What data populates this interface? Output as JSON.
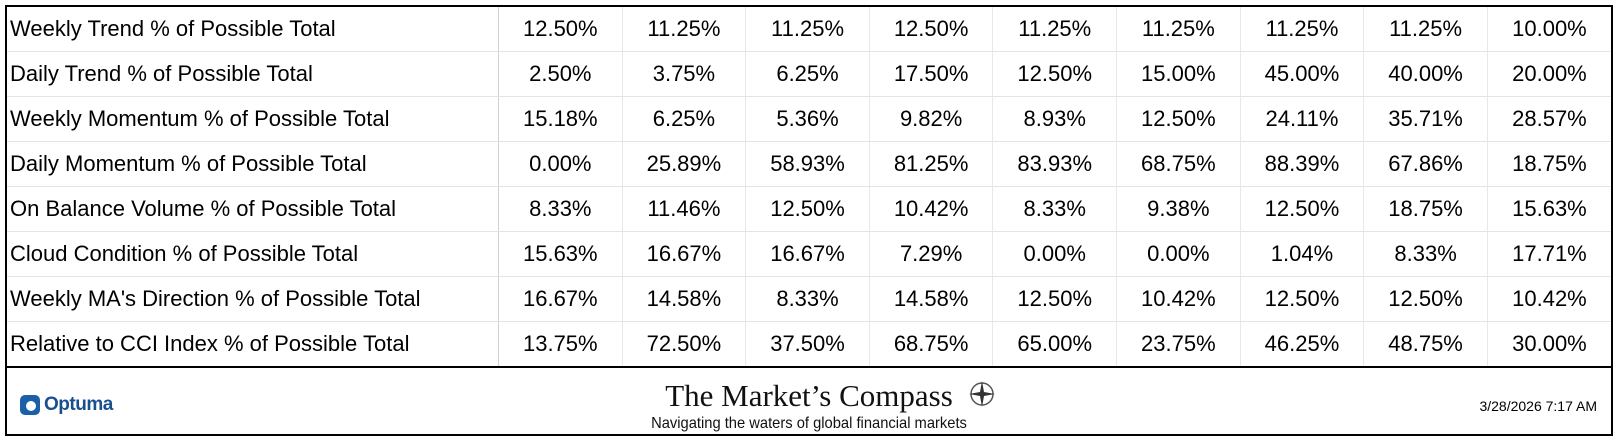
{
  "table": {
    "rows": [
      {
        "label": "Weekly Trend % of Possible Total",
        "values": [
          "12.50%",
          "11.25%",
          "11.25%",
          "12.50%",
          "11.25%",
          "11.25%",
          "11.25%",
          "11.25%",
          "10.00%"
        ]
      },
      {
        "label": "Daily Trend % of Possible Total",
        "values": [
          "2.50%",
          "3.75%",
          "6.25%",
          "17.50%",
          "12.50%",
          "15.00%",
          "45.00%",
          "40.00%",
          "20.00%"
        ]
      },
      {
        "label": "Weekly Momentum % of Possible Total",
        "values": [
          "15.18%",
          "6.25%",
          "5.36%",
          "9.82%",
          "8.93%",
          "12.50%",
          "24.11%",
          "35.71%",
          "28.57%"
        ]
      },
      {
        "label": "Daily Momentum % of Possible Total",
        "values": [
          "0.00%",
          "25.89%",
          "58.93%",
          "81.25%",
          "83.93%",
          "68.75%",
          "88.39%",
          "67.86%",
          "18.75%"
        ]
      },
      {
        "label": "On Balance Volume % of Possible Total",
        "values": [
          "8.33%",
          "11.46%",
          "12.50%",
          "10.42%",
          "8.33%",
          "9.38%",
          "12.50%",
          "18.75%",
          "15.63%"
        ]
      },
      {
        "label": "Cloud Condition % of Possible Total",
        "values": [
          "15.63%",
          "16.67%",
          "16.67%",
          "7.29%",
          "0.00%",
          "0.00%",
          "1.04%",
          "8.33%",
          "17.71%"
        ]
      },
      {
        "label": "Weekly MA's Direction % of Possible Total",
        "values": [
          "16.67%",
          "14.58%",
          "8.33%",
          "14.58%",
          "12.50%",
          "10.42%",
          "12.50%",
          "12.50%",
          "10.42%"
        ]
      },
      {
        "label": "Relative to CCI Index % of Possible Total",
        "values": [
          "13.75%",
          "72.50%",
          "37.50%",
          "68.75%",
          "65.00%",
          "23.75%",
          "46.25%",
          "48.75%",
          "30.00%"
        ]
      }
    ]
  },
  "footer": {
    "logo": "Optuma",
    "title": "The Market’s Compass",
    "subtitle": "Navigating the waters of global financial markets",
    "timestamp": "3/28/2026 7:17 AM"
  }
}
